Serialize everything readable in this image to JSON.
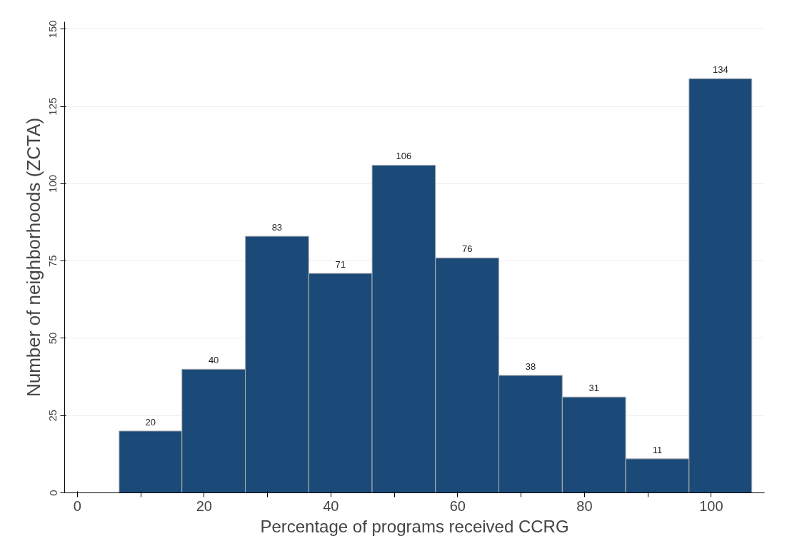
{
  "chart_data": {
    "type": "histogram",
    "xlabel": "Percentage of programs received CCRG",
    "ylabel": "Number of neighborhoods (ZCTA)",
    "bins": [
      6.6,
      16.5,
      26.5,
      36.5,
      46.5,
      56.5,
      66.5,
      76.5,
      86.5,
      96.5,
      106.4
    ],
    "values": [
      20,
      40,
      83,
      71,
      106,
      76,
      38,
      31,
      11,
      134
    ],
    "color": "#1b4a78",
    "data_labels": true,
    "grid": "y",
    "xlim": [
      -2,
      108.4
    ],
    "ylim": [
      0,
      152.4
    ],
    "xticks": [
      0,
      {
        "value": 10,
        "label": null
      },
      20,
      {
        "value": 30,
        "label": null
      },
      40,
      {
        "value": 50,
        "label": null
      },
      60,
      {
        "value": 70,
        "label": null
      },
      80,
      {
        "value": 90,
        "label": null
      },
      100
    ],
    "yticks": [
      0,
      25,
      50,
      75,
      100,
      125,
      150
    ]
  }
}
